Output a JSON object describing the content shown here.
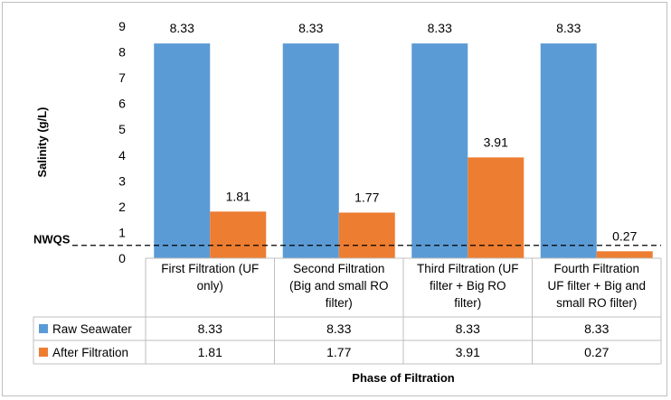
{
  "chart_data": {
    "type": "bar",
    "categories": [
      [
        "First Filtration (UF",
        "only)"
      ],
      [
        "Second Filtration",
        "(Big and small RO",
        "filter)"
      ],
      [
        "Third Filtration (UF",
        "filter + Big RO",
        "filter)"
      ],
      [
        "Fourth Filtration",
        "UF filter + Big and",
        "small RO filter)"
      ]
    ],
    "series": [
      {
        "name": "Raw Seawater",
        "values": [
          8.33,
          8.33,
          8.33,
          8.33
        ],
        "labels": [
          "8.33",
          "8.33",
          "8.33",
          "8.33"
        ],
        "color": "#5b9bd5"
      },
      {
        "name": "After Filtration",
        "values": [
          1.81,
          1.77,
          3.91,
          0.27
        ],
        "labels": [
          "1.81",
          "1.77",
          "3.91",
          "0.27"
        ],
        "color": "#ed7d31"
      }
    ],
    "ylabel": "Salinity (g/L)",
    "xlabel": "Phase of Filtration",
    "ylim": [
      0,
      9
    ],
    "yticks": [
      "0",
      "1",
      "2",
      "3",
      "4",
      "5",
      "6",
      "7",
      "8",
      "9"
    ],
    "grid": false,
    "legend": "data-table",
    "reference_line": {
      "label": "NWQS",
      "value": 0.5,
      "style": "dashed"
    }
  }
}
